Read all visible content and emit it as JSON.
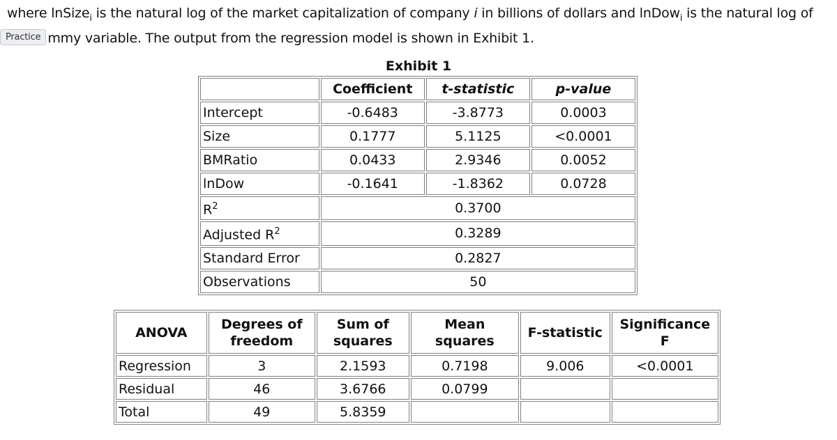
{
  "text": {
    "line1": "where lnSizeᵢ is the natural log of the market capitalization of company i in billions of dollars and lnDowᵢ is the natural log of",
    "line1_parts": {
      "a": "where lnSize",
      "sub1": "i",
      "b": " is the natural log of the market capitalization of company ",
      "ital": "i",
      "c": " in billions of dollars and lnDow",
      "sub2": "i",
      "d": " is the natural log of"
    },
    "practice_badge": "Practice",
    "line2": "mmy variable. The output from the regression model is shown in Exhibit 1."
  },
  "exhibit": {
    "title": "Exhibit 1",
    "headers": [
      "",
      "Coefficient",
      "t-statistic",
      "p-value"
    ],
    "rows": [
      {
        "label": "Intercept",
        "coef": "-0.6483",
        "t": "-3.8773",
        "p": "0.0003"
      },
      {
        "label": "Size",
        "coef": "0.1777",
        "t": "5.1125",
        "p": "<0.0001"
      },
      {
        "label": "BMRatio",
        "coef": "0.0433",
        "t": "2.9346",
        "p": "0.0052"
      },
      {
        "label": "lnDow",
        "coef": "-0.1641",
        "t": "-1.8362",
        "p": "0.0728"
      }
    ],
    "stats": [
      {
        "label": "R",
        "sup": "2",
        "value": "0.3700"
      },
      {
        "label": "Adjusted R",
        "sup": "2",
        "value": "0.3289"
      },
      {
        "label": "Standard Error",
        "sup": "",
        "value": "0.2827"
      },
      {
        "label": "Observations",
        "sup": "",
        "value": "50"
      }
    ]
  },
  "anova": {
    "headers": [
      "ANOVA",
      "Degrees of freedom",
      "Sum of squares",
      "Mean squares",
      "F-statistic",
      "Significance F"
    ],
    "rows": [
      {
        "label": "Regression",
        "df": "3",
        "ss": "2.1593",
        "ms": "0.7198",
        "f": "9.006",
        "sig": "<0.0001"
      },
      {
        "label": "Residual",
        "df": "46",
        "ss": "3.6766",
        "ms": "0.0799",
        "f": "",
        "sig": ""
      },
      {
        "label": "Total",
        "df": "49",
        "ss": "5.8359",
        "ms": "",
        "f": "",
        "sig": ""
      }
    ]
  }
}
